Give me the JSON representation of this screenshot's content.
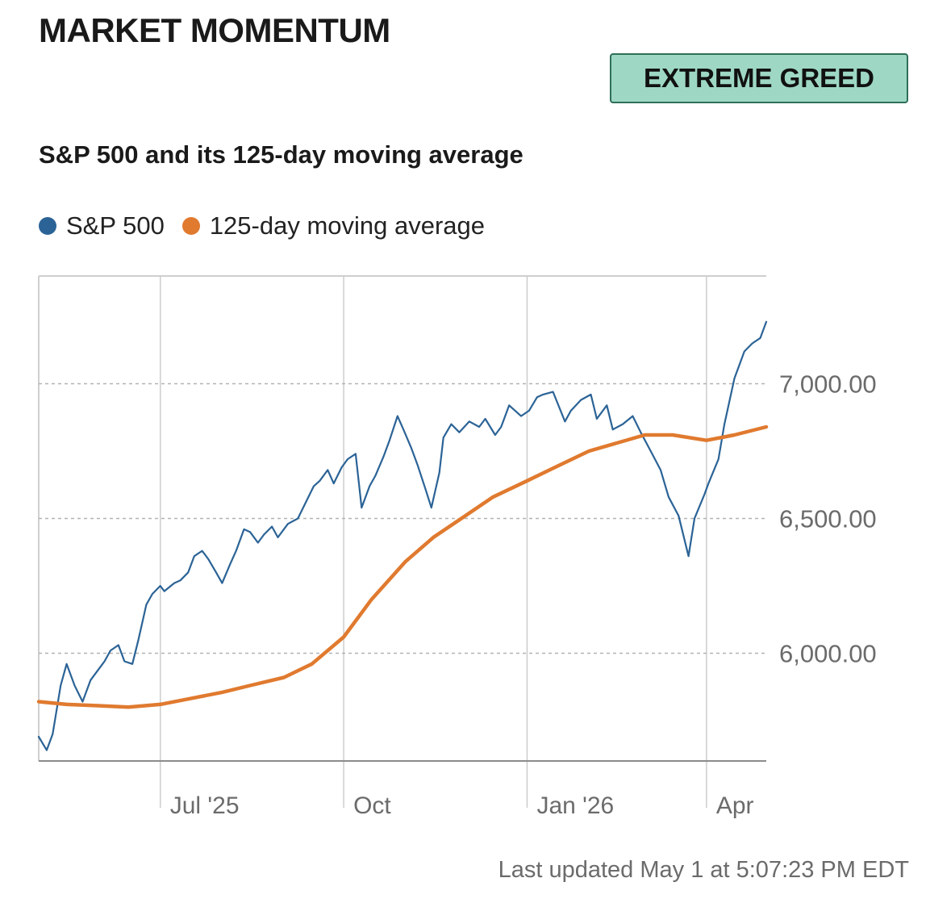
{
  "header": {
    "title": "MARKET MOMENTUM",
    "badge": "EXTREME GREED"
  },
  "colors": {
    "sp500": "#2b6396",
    "moving_average": "#e07a2f",
    "badge_bg": "#9ed8c5",
    "badge_border": "#2e6f57"
  },
  "footer": {
    "last_updated": "Last updated May 1 at 5:07:23 PM EDT"
  },
  "chart_data": {
    "type": "line",
    "title": "S&P 500 and its 125-day moving average",
    "legend_placement": "top-left",
    "grid": true,
    "x_range": [
      "2025-05-01",
      "2026-05-01"
    ],
    "ylim": [
      5600,
      7400
    ],
    "y_ticks": [
      7000,
      6500,
      6000
    ],
    "y_tick_labels": [
      "7,000.00",
      "6,500.00",
      "6,000.00"
    ],
    "x_ticks": [
      "2025-07-01",
      "2025-10-01",
      "2026-01-01",
      "2026-04-01"
    ],
    "x_tick_labels": [
      "Jul '25",
      "Oct",
      "Jan '26",
      "Apr"
    ],
    "series": [
      {
        "name": "S&P 500",
        "x": [
          "2025-05-01",
          "2025-05-05",
          "2025-05-08",
          "2025-05-12",
          "2025-05-15",
          "2025-05-19",
          "2025-05-23",
          "2025-05-27",
          "2025-05-30",
          "2025-06-03",
          "2025-06-06",
          "2025-06-10",
          "2025-06-13",
          "2025-06-17",
          "2025-06-20",
          "2025-06-24",
          "2025-06-27",
          "2025-07-01",
          "2025-07-03",
          "2025-07-08",
          "2025-07-11",
          "2025-07-15",
          "2025-07-18",
          "2025-07-22",
          "2025-07-25",
          "2025-07-29",
          "2025-08-01",
          "2025-08-05",
          "2025-08-08",
          "2025-08-12",
          "2025-08-15",
          "2025-08-19",
          "2025-08-22",
          "2025-08-26",
          "2025-08-29",
          "2025-09-03",
          "2025-09-08",
          "2025-09-12",
          "2025-09-16",
          "2025-09-19",
          "2025-09-23",
          "2025-09-26",
          "2025-09-30",
          "2025-10-03",
          "2025-10-07",
          "2025-10-10",
          "2025-10-14",
          "2025-10-17",
          "2025-10-21",
          "2025-10-24",
          "2025-10-28",
          "2025-10-31",
          "2025-11-04",
          "2025-11-07",
          "2025-11-11",
          "2025-11-14",
          "2025-11-18",
          "2025-11-20",
          "2025-11-24",
          "2025-11-28",
          "2025-12-03",
          "2025-12-08",
          "2025-12-11",
          "2025-12-16",
          "2025-12-19",
          "2025-12-23",
          "2025-12-29",
          "2026-01-02",
          "2026-01-06",
          "2026-01-09",
          "2026-01-14",
          "2026-01-20",
          "2026-01-23",
          "2026-01-28",
          "2026-02-02",
          "2026-02-05",
          "2026-02-10",
          "2026-02-13",
          "2026-02-18",
          "2026-02-23",
          "2026-02-27",
          "2026-03-04",
          "2026-03-09",
          "2026-03-13",
          "2026-03-18",
          "2026-03-23",
          "2026-03-26",
          "2026-03-31",
          "2026-04-02",
          "2026-04-07",
          "2026-04-10",
          "2026-04-15",
          "2026-04-20",
          "2026-04-24",
          "2026-04-28",
          "2026-05-01"
        ],
        "values": [
          5690,
          5640,
          5700,
          5880,
          5960,
          5880,
          5820,
          5900,
          5930,
          5970,
          6010,
          6030,
          5970,
          5960,
          6050,
          6180,
          6220,
          6250,
          6230,
          6260,
          6270,
          6300,
          6360,
          6380,
          6350,
          6300,
          6260,
          6330,
          6380,
          6460,
          6450,
          6410,
          6440,
          6470,
          6430,
          6480,
          6500,
          6560,
          6620,
          6640,
          6680,
          6630,
          6690,
          6720,
          6740,
          6540,
          6620,
          6660,
          6730,
          6790,
          6880,
          6830,
          6760,
          6700,
          6610,
          6540,
          6670,
          6800,
          6850,
          6820,
          6860,
          6840,
          6870,
          6810,
          6840,
          6920,
          6880,
          6900,
          6950,
          6960,
          6970,
          6860,
          6900,
          6940,
          6960,
          6870,
          6920,
          6830,
          6850,
          6880,
          6820,
          6750,
          6680,
          6580,
          6510,
          6360,
          6500,
          6590,
          6630,
          6720,
          6850,
          7020,
          7120,
          7150,
          7170,
          7230
        ]
      },
      {
        "name": "125-day moving average",
        "x": [
          "2025-05-01",
          "2025-05-15",
          "2025-06-01",
          "2025-06-15",
          "2025-07-01",
          "2025-07-15",
          "2025-08-01",
          "2025-08-15",
          "2025-09-01",
          "2025-09-15",
          "2025-10-01",
          "2025-10-15",
          "2025-11-01",
          "2025-11-15",
          "2025-12-01",
          "2025-12-15",
          "2026-01-01",
          "2026-01-15",
          "2026-02-01",
          "2026-02-15",
          "2026-03-01",
          "2026-03-15",
          "2026-04-01",
          "2026-04-15",
          "2026-05-01"
        ],
        "values": [
          5820,
          5810,
          5805,
          5800,
          5810,
          5830,
          5855,
          5880,
          5910,
          5960,
          6060,
          6200,
          6340,
          6430,
          6510,
          6580,
          6640,
          6690,
          6750,
          6780,
          6810,
          6810,
          6790,
          6810,
          6840
        ]
      }
    ]
  }
}
